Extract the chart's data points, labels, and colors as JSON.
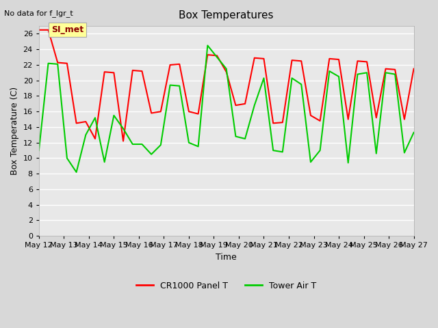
{
  "title": "Box Temperatures",
  "xlabel": "Time",
  "ylabel": "Box Temperature (C)",
  "top_left_text": "No data for f_lgr_t",
  "annotation_text": "SI_met",
  "ylim": [
    0,
    27
  ],
  "yticks": [
    0,
    2,
    4,
    6,
    8,
    10,
    12,
    14,
    16,
    18,
    20,
    22,
    24,
    26
  ],
  "x_labels": [
    "May 12",
    "May 13",
    "May 14",
    "May 15",
    "May 16",
    "May 17",
    "May 18",
    "May 19",
    "May 20",
    "May 21",
    "May 22",
    "May 23",
    "May 24",
    "May 25",
    "May 26",
    "May 27"
  ],
  "legend_entries": [
    "CR1000 Panel T",
    "Tower Air T"
  ],
  "legend_colors": [
    "#ff0000",
    "#00cc00"
  ],
  "bg_color": "#e8e8e8",
  "plot_bg": "#e8e8e8",
  "grid_color": "#ffffff",
  "red_line": [
    26.5,
    26.5,
    22.3,
    22.2,
    14.5,
    14.7,
    12.5,
    21.1,
    21.0,
    12.2,
    21.3,
    21.2,
    15.8,
    16.0,
    22.0,
    22.1,
    16.0,
    15.7,
    23.3,
    23.2,
    21.1,
    16.8,
    17.0,
    22.9,
    22.8,
    14.5,
    14.6,
    22.6,
    22.5,
    15.5,
    14.8,
    22.8,
    22.7,
    15.0,
    22.5,
    22.4,
    15.2,
    21.5,
    21.4,
    15.0,
    21.5
  ],
  "green_line": [
    11.0,
    22.2,
    22.1,
    10.0,
    8.2,
    13.0,
    15.2,
    9.5,
    15.5,
    13.8,
    11.8,
    11.8,
    10.5,
    11.7,
    19.4,
    19.3,
    12.0,
    11.5,
    24.5,
    23.0,
    21.5,
    12.8,
    12.5,
    16.8,
    20.3,
    11.0,
    10.8,
    20.3,
    19.5,
    9.5,
    11.0,
    21.2,
    20.5,
    9.4,
    20.8,
    21.0,
    10.6,
    21.0,
    20.8,
    10.7,
    13.3
  ]
}
